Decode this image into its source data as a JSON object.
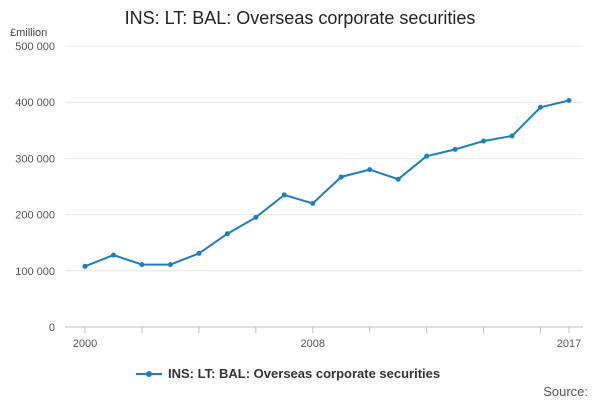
{
  "chart_data": {
    "type": "line",
    "title": "INS: LT: BAL: Overseas corporate securities",
    "unit_label": "£million",
    "ylim": [
      0,
      500000
    ],
    "yticks": [
      {
        "value": 0,
        "label": "0"
      },
      {
        "value": 100000,
        "label": "100 000"
      },
      {
        "value": 200000,
        "label": "200 000"
      },
      {
        "value": 300000,
        "label": "300 000"
      },
      {
        "value": 400000,
        "label": "400 000"
      },
      {
        "value": 500000,
        "label": "500 000"
      }
    ],
    "xlim": [
      2000,
      2017
    ],
    "xtick_marks": [
      2000,
      2002,
      2004,
      2006,
      2008,
      2010,
      2012,
      2014,
      2016,
      2017
    ],
    "xtick_labels": [
      {
        "value": 2000,
        "label": "2000"
      },
      {
        "value": 2008,
        "label": "2008"
      },
      {
        "value": 2017,
        "label": "2017"
      }
    ],
    "grid": "horizontal",
    "legend_position": "bottom",
    "series": [
      {
        "name": "INS: LT: BAL: Overseas corporate securities",
        "color": "#1a7ebf",
        "x": [
          2000,
          2001,
          2002,
          2003,
          2004,
          2005,
          2006,
          2007,
          2008,
          2009,
          2010,
          2011,
          2012,
          2013,
          2014,
          2015,
          2016,
          2017
        ],
        "values": [
          108000,
          128000,
          111000,
          111000,
          131000,
          166000,
          195000,
          235000,
          220000,
          267000,
          280000,
          263000,
          304000,
          316000,
          331000,
          340000,
          391000,
          403000
        ]
      }
    ]
  },
  "source_label": "Source:"
}
